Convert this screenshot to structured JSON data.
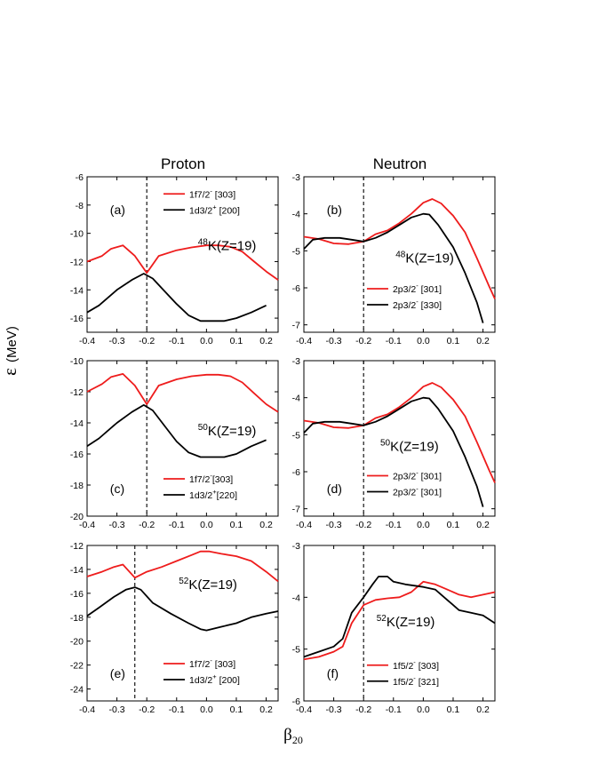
{
  "column_titles": {
    "left": "Proton",
    "right": "Neutron"
  },
  "ylabel": "ε (MeV)",
  "xlabel": "β20",
  "chart_data": [
    {
      "type": "line",
      "panel": "(a)",
      "label": "(a)",
      "nucleus": {
        "mass": "48",
        "rest": "K(Z=19)"
      },
      "xlim": [
        -0.4,
        0.24
      ],
      "ylim": [
        -17,
        -6
      ],
      "xticks": [
        -0.4,
        -0.3,
        -0.2,
        -0.1,
        0.0,
        0.1,
        0.2
      ],
      "yticks": [
        -16,
        -14,
        -12,
        -10,
        -8,
        -6
      ],
      "xticklabels": [
        "-0.4",
        "-0.3",
        "-0.2",
        "-0.1",
        "0.0",
        "0.1",
        "0.2"
      ],
      "yticklabels": [
        "-16",
        "-14",
        "-12",
        "-10",
        "-8",
        "-6"
      ],
      "vline": -0.2,
      "series": [
        {
          "name": "1f7/2⁻ [303]",
          "color": "#ee1c1c",
          "x": [
            -0.4,
            -0.35,
            -0.32,
            -0.28,
            -0.24,
            -0.2,
            -0.16,
            -0.1,
            -0.05,
            0.0,
            0.04,
            0.08,
            0.12,
            0.16,
            0.2,
            0.24
          ],
          "y": [
            -12.0,
            -11.6,
            -11.1,
            -10.85,
            -11.6,
            -12.8,
            -11.6,
            -11.2,
            -11.0,
            -10.85,
            -10.85,
            -10.95,
            -11.3,
            -12.0,
            -12.7,
            -13.3
          ]
        },
        {
          "name": "1d3/2⁺ [200]",
          "color": "#000000",
          "x": [
            -0.4,
            -0.36,
            -0.3,
            -0.25,
            -0.21,
            -0.18,
            -0.14,
            -0.1,
            -0.06,
            -0.02,
            0.02,
            0.06,
            0.1,
            0.15,
            0.2
          ],
          "y": [
            -15.6,
            -15.1,
            -14.0,
            -13.3,
            -12.85,
            -13.2,
            -14.1,
            -15.0,
            -15.8,
            -16.2,
            -16.2,
            -16.2,
            -16.0,
            -15.6,
            -15.1
          ]
        }
      ],
      "legend": [
        {
          "base": "1f7/2",
          "sup": "-",
          "tail": " [303]"
        },
        {
          "base": "1d3/2",
          "sup": "+",
          "tail": " [200]"
        }
      ],
      "legend_pos": "top"
    },
    {
      "type": "line",
      "panel": "(b)",
      "label": "(b)",
      "nucleus": {
        "mass": "48",
        "rest": "K(Z=19)"
      },
      "xlim": [
        -0.4,
        0.24
      ],
      "ylim": [
        -7.2,
        -3
      ],
      "xticks": [
        -0.4,
        -0.3,
        -0.2,
        -0.1,
        0.0,
        0.1,
        0.2
      ],
      "yticks": [
        -7,
        -6,
        -5,
        -4,
        -3
      ],
      "xticklabels": [
        "-0.4",
        "-0.3",
        "-0.2",
        "-0.1",
        "0.0",
        "0.1",
        "0.2"
      ],
      "yticklabels": [
        "-7",
        "-6",
        "-5",
        "-4",
        "-3"
      ],
      "vline": -0.2,
      "series": [
        {
          "name": "2p3/2⁻ [301]",
          "color": "#ee1c1c",
          "x": [
            -0.4,
            -0.35,
            -0.3,
            -0.25,
            -0.2,
            -0.16,
            -0.12,
            -0.08,
            -0.04,
            0.0,
            0.03,
            0.06,
            0.1,
            0.14,
            0.18,
            0.22,
            0.24
          ],
          "y": [
            -4.62,
            -4.68,
            -4.8,
            -4.82,
            -4.75,
            -4.55,
            -4.45,
            -4.25,
            -4.0,
            -3.7,
            -3.6,
            -3.72,
            -4.05,
            -4.5,
            -5.2,
            -5.95,
            -6.3
          ]
        },
        {
          "name": "2p3/2⁻ [330]",
          "color": "#000000",
          "x": [
            -0.4,
            -0.37,
            -0.33,
            -0.28,
            -0.24,
            -0.2,
            -0.16,
            -0.12,
            -0.08,
            -0.04,
            0.0,
            0.02,
            0.05,
            0.1,
            0.14,
            0.18,
            0.2
          ],
          "y": [
            -4.95,
            -4.7,
            -4.65,
            -4.65,
            -4.7,
            -4.75,
            -4.65,
            -4.5,
            -4.3,
            -4.1,
            -4.0,
            -4.02,
            -4.3,
            -4.9,
            -5.6,
            -6.4,
            -6.95
          ]
        }
      ],
      "legend": [
        {
          "base": "2p3/2",
          "sup": "-",
          "tail": " [301]"
        },
        {
          "base": "2p3/2",
          "sup": "-",
          "tail": " [330]"
        }
      ],
      "legend_pos": "bottom"
    },
    {
      "type": "line",
      "panel": "(c)",
      "label": "(c)",
      "nucleus": {
        "mass": "50",
        "rest": "K(Z=19)"
      },
      "xlim": [
        -0.4,
        0.24
      ],
      "ylim": [
        -20,
        -10
      ],
      "xticks": [
        -0.4,
        -0.3,
        -0.2,
        -0.1,
        0.0,
        0.1,
        0.2
      ],
      "yticks": [
        -20,
        -18,
        -16,
        -14,
        -12,
        -10
      ],
      "xticklabels": [
        "-0.4",
        "-0.3",
        "-0.2",
        "-0.1",
        "0.0",
        "0.1",
        "0.2"
      ],
      "yticklabels": [
        "-20",
        "-18",
        "-16",
        "-14",
        "-12",
        "-10"
      ],
      "vline": -0.2,
      "series": [
        {
          "name": "1f7/2⁻ [303]",
          "color": "#ee1c1c",
          "x": [
            -0.4,
            -0.35,
            -0.32,
            -0.28,
            -0.24,
            -0.2,
            -0.16,
            -0.1,
            -0.05,
            0.0,
            0.04,
            0.08,
            0.12,
            0.16,
            0.2,
            0.24
          ],
          "y": [
            -12.0,
            -11.5,
            -11.05,
            -10.85,
            -11.6,
            -12.8,
            -11.6,
            -11.2,
            -11.0,
            -10.9,
            -10.9,
            -11.0,
            -11.4,
            -12.1,
            -12.8,
            -13.3
          ]
        },
        {
          "name": "1d3/2⁺ [220]",
          "color": "#000000",
          "x": [
            -0.4,
            -0.36,
            -0.3,
            -0.25,
            -0.21,
            -0.18,
            -0.14,
            -0.1,
            -0.06,
            -0.02,
            0.02,
            0.06,
            0.1,
            0.15,
            0.2
          ],
          "y": [
            -15.5,
            -15.0,
            -14.0,
            -13.3,
            -12.85,
            -13.2,
            -14.2,
            -15.2,
            -15.9,
            -16.2,
            -16.2,
            -16.2,
            -16.0,
            -15.5,
            -15.1
          ]
        }
      ],
      "legend": [
        {
          "base": "1f7/2",
          "sup": "-",
          "tail": "[303]"
        },
        {
          "base": "1d3/2",
          "sup": "+",
          "tail": "[220]"
        }
      ],
      "legend_pos": "bottom"
    },
    {
      "type": "line",
      "panel": "(d)",
      "label": "(d)",
      "nucleus": {
        "mass": "50",
        "rest": "K(Z=19)"
      },
      "xlim": [
        -0.4,
        0.24
      ],
      "ylim": [
        -7.2,
        -3
      ],
      "xticks": [
        -0.4,
        -0.3,
        -0.2,
        -0.1,
        0.0,
        0.1,
        0.2
      ],
      "yticks": [
        -7,
        -6,
        -5,
        -4,
        -3
      ],
      "xticklabels": [
        "-0.4",
        "-0.3",
        "-0.2",
        "-0.1",
        "0.0",
        "0.1",
        "0.2"
      ],
      "yticklabels": [
        "-7",
        "-6",
        "-5",
        "-4",
        "-3"
      ],
      "vline": -0.2,
      "series": [
        {
          "name": "2p3/2⁻ [301]",
          "color": "#ee1c1c",
          "x": [
            -0.4,
            -0.35,
            -0.3,
            -0.25,
            -0.2,
            -0.16,
            -0.12,
            -0.08,
            -0.04,
            0.0,
            0.03,
            0.06,
            0.1,
            0.14,
            0.18,
            0.22,
            0.24
          ],
          "y": [
            -4.62,
            -4.68,
            -4.8,
            -4.82,
            -4.75,
            -4.55,
            -4.45,
            -4.25,
            -4.0,
            -3.7,
            -3.6,
            -3.72,
            -4.05,
            -4.5,
            -5.2,
            -5.95,
            -6.3
          ]
        },
        {
          "name": "2p3/2⁻ [301]",
          "color": "#000000",
          "x": [
            -0.4,
            -0.37,
            -0.33,
            -0.28,
            -0.24,
            -0.2,
            -0.16,
            -0.12,
            -0.08,
            -0.04,
            0.0,
            0.02,
            0.05,
            0.1,
            0.14,
            0.18,
            0.2
          ],
          "y": [
            -4.95,
            -4.7,
            -4.65,
            -4.65,
            -4.7,
            -4.75,
            -4.65,
            -4.5,
            -4.3,
            -4.1,
            -4.0,
            -4.02,
            -4.3,
            -4.9,
            -5.6,
            -6.4,
            -6.95
          ]
        }
      ],
      "legend": [
        {
          "base": "2p3/2",
          "sup": "-",
          "tail": " [301]"
        },
        {
          "base": "2p3/2",
          "sup": "-",
          "tail": " [301]"
        }
      ],
      "legend_pos": "bottom"
    },
    {
      "type": "line",
      "panel": "(e)",
      "label": "(e)",
      "nucleus": {
        "mass": "52",
        "rest": "K(Z=19)"
      },
      "xlim": [
        -0.4,
        0.24
      ],
      "ylim": [
        -25,
        -12
      ],
      "xticks": [
        -0.4,
        -0.3,
        -0.2,
        -0.1,
        0.0,
        0.1,
        0.2
      ],
      "yticks": [
        -24,
        -22,
        -20,
        -18,
        -16,
        -14,
        -12
      ],
      "xticklabels": [
        "-0.4",
        "-0.3",
        "-0.2",
        "-0.1",
        "0.0",
        "0.1",
        "0.2"
      ],
      "yticklabels": [
        "-24",
        "-22",
        "-20",
        "-18",
        "-16",
        "-14",
        "-12"
      ],
      "vline": -0.24,
      "series": [
        {
          "name": "1f7/2⁻ [303]",
          "color": "#ee1c1c",
          "x": [
            -0.4,
            -0.35,
            -0.31,
            -0.28,
            -0.24,
            -0.2,
            -0.15,
            -0.1,
            -0.05,
            -0.02,
            0.01,
            0.05,
            0.1,
            0.15,
            0.2,
            0.24
          ],
          "y": [
            -14.6,
            -14.2,
            -13.8,
            -13.6,
            -14.7,
            -14.2,
            -13.8,
            -13.3,
            -12.8,
            -12.5,
            -12.5,
            -12.7,
            -12.9,
            -13.3,
            -14.2,
            -15.0
          ]
        },
        {
          "name": "1d3/2⁺ [200]",
          "color": "#000000",
          "x": [
            -0.4,
            -0.36,
            -0.31,
            -0.27,
            -0.24,
            -0.22,
            -0.18,
            -0.12,
            -0.06,
            -0.02,
            0.0,
            0.05,
            0.1,
            0.15,
            0.2,
            0.24
          ],
          "y": [
            -17.9,
            -17.2,
            -16.3,
            -15.7,
            -15.5,
            -15.7,
            -16.8,
            -17.7,
            -18.5,
            -19.0,
            -19.1,
            -18.8,
            -18.5,
            -18.0,
            -17.7,
            -17.5
          ]
        }
      ],
      "legend": [
        {
          "base": "1f7/2",
          "sup": "-",
          "tail": " [303]"
        },
        {
          "base": "1d3/2",
          "sup": "+",
          "tail": " [200]"
        }
      ],
      "legend_pos": "bottom"
    },
    {
      "type": "line",
      "panel": "(f)",
      "label": "(f)",
      "nucleus": {
        "mass": "52",
        "rest": "K(Z=19)"
      },
      "xlim": [
        -0.4,
        0.24
      ],
      "ylim": [
        -6,
        -3
      ],
      "xticks": [
        -0.4,
        -0.3,
        -0.2,
        -0.1,
        0.0,
        0.1,
        0.2
      ],
      "yticks": [
        -6,
        -5,
        -4,
        -3
      ],
      "xticklabels": [
        "-0.4",
        "-0.3",
        "-0.2",
        "-0.1",
        "0.0",
        "0.1",
        "0.2"
      ],
      "yticklabels": [
        "-6",
        "-5",
        "-4",
        "-3"
      ],
      "vline": -0.2,
      "series": [
        {
          "name": "1f5/2⁻ [303]",
          "color": "#ee1c1c",
          "x": [
            -0.4,
            -0.35,
            -0.3,
            -0.27,
            -0.24,
            -0.2,
            -0.16,
            -0.12,
            -0.08,
            -0.04,
            0.0,
            0.04,
            0.08,
            0.12,
            0.16,
            0.2,
            0.24
          ],
          "y": [
            -5.2,
            -5.15,
            -5.05,
            -4.95,
            -4.5,
            -4.15,
            -4.05,
            -4.02,
            -4.0,
            -3.9,
            -3.7,
            -3.75,
            -3.85,
            -3.95,
            -4.0,
            -3.95,
            -3.9
          ]
        },
        {
          "name": "1f5/2⁻ [321]",
          "color": "#000000",
          "x": [
            -0.4,
            -0.35,
            -0.3,
            -0.27,
            -0.24,
            -0.2,
            -0.17,
            -0.15,
            -0.12,
            -0.1,
            -0.06,
            0.0,
            0.04,
            0.08,
            0.12,
            0.16,
            0.2,
            0.24
          ],
          "y": [
            -5.15,
            -5.05,
            -4.95,
            -4.8,
            -4.3,
            -4.0,
            -3.75,
            -3.6,
            -3.6,
            -3.7,
            -3.75,
            -3.8,
            -3.85,
            -4.05,
            -4.25,
            -4.3,
            -4.35,
            -4.5
          ]
        }
      ],
      "legend": [
        {
          "base": "1f5/2",
          "sup": "-",
          "tail": " [303]"
        },
        {
          "base": "1f5/2",
          "sup": "-",
          "tail": " [321]"
        }
      ],
      "legend_pos": "bottom"
    }
  ]
}
